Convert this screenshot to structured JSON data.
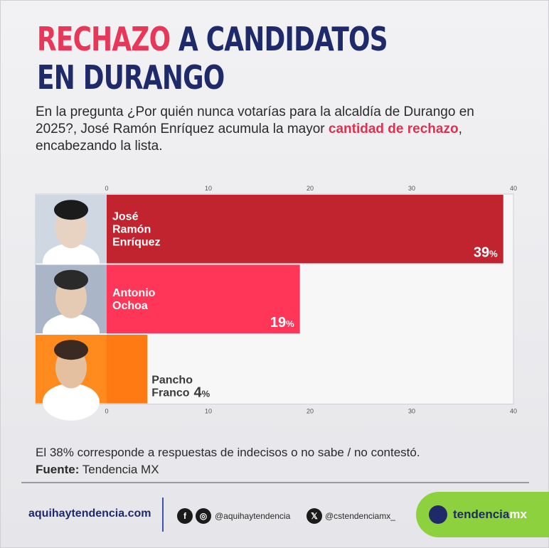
{
  "header": {
    "title_highlight": "RECHAZO",
    "title_rest": " A CANDIDATOS",
    "title_line2": "EN DURANGO",
    "subtitle_pre": "En la pregunta ¿Por quién nunca votarías para la alcaldía de Durango en 2025?, José Ramón Enríquez acumula la mayor ",
    "subtitle_em": "cantidad de rechazo",
    "subtitle_post": ", encabezando la lista."
  },
  "colors": {
    "navy": "#1f2a6b",
    "pink": "#e8385a",
    "bar_1": "#c1242f",
    "bar_2": "#ff3657",
    "bar_3": "#ff7a12",
    "brand_green": "#8ed13e"
  },
  "chart_data": {
    "type": "bar",
    "orientation": "horizontal",
    "categories": [
      "José Ramón Enríquez",
      "Antonio Ochoa",
      "Pancho Franco"
    ],
    "label_lines": [
      [
        "José",
        "Ramón",
        "Enríquez"
      ],
      [
        "Antonio",
        "Ochoa"
      ],
      [
        "Pancho",
        "Franco"
      ]
    ],
    "values": [
      39,
      19,
      4
    ],
    "value_labels": [
      "39",
      "19",
      "4"
    ],
    "unit": "%",
    "xlim": [
      0,
      40
    ],
    "ticks": [
      0,
      10,
      20,
      30,
      40
    ],
    "tick_labels": [
      "0",
      "10",
      "20",
      "30",
      "40"
    ],
    "tick_position": "top and bottom",
    "grid": false,
    "bar_colors": [
      "#c1242f",
      "#ff3657",
      "#ff7a12"
    ]
  },
  "footer": {
    "note": "El 38% corresponde a respuestas de indecisos o no sabe / no contestó.",
    "source_label": "Fuente:",
    "source_value": " Tendencia MX",
    "site": "aquihaytendencia.com",
    "social_handle_1": "@aquihaytendencia",
    "social_handle_2": "@cstendenciamx_",
    "brand_main": "tendencia",
    "brand_suffix": "mx",
    "facebook_icon": "f",
    "instagram_icon": "◎",
    "x_icon": "𝕏"
  }
}
